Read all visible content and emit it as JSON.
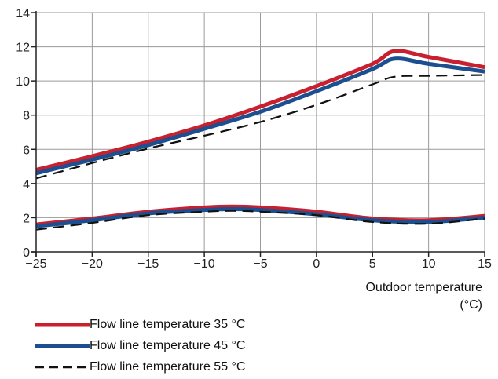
{
  "chart_data": {
    "type": "line",
    "title": "",
    "xlabel": "Outdoor temperature",
    "xlabel_unit": "(°C)",
    "ylabel": "",
    "xlim": [
      -25,
      15
    ],
    "ylim": [
      0,
      14
    ],
    "xticks": [
      "-25",
      "-20",
      "-15",
      "-10",
      "-5",
      "0",
      "5",
      "10",
      "15"
    ],
    "yticks": [
      "0",
      "2",
      "4",
      "6",
      "8",
      "10",
      "12",
      "14"
    ],
    "grid": true,
    "legend_position": "bottom-left",
    "series": [
      {
        "name": "Flow line temperature 35 °C",
        "color": "#c8202f",
        "style": "solid",
        "curves": [
          {
            "x": [
              -25,
              -20,
              -15,
              -10,
              -5,
              0,
              5,
              7,
              10,
              15
            ],
            "y": [
              4.8,
              5.6,
              6.45,
              7.4,
              8.5,
              9.7,
              11.0,
              11.75,
              11.4,
              10.8
            ]
          },
          {
            "x": [
              -25,
              -20,
              -15,
              -10,
              -7.5,
              -5,
              0,
              5,
              10,
              15
            ],
            "y": [
              1.6,
              1.95,
              2.35,
              2.6,
              2.65,
              2.6,
              2.35,
              1.95,
              1.85,
              2.1
            ]
          }
        ]
      },
      {
        "name": "Flow line temperature 45 °C",
        "color": "#1b4f8f",
        "style": "solid",
        "curves": [
          {
            "x": [
              -25,
              -20,
              -15,
              -10,
              -5,
              0,
              5,
              7,
              10,
              15
            ],
            "y": [
              4.6,
              5.4,
              6.25,
              7.2,
              8.2,
              9.4,
              10.7,
              11.3,
              11.0,
              10.55
            ]
          },
          {
            "x": [
              -25,
              -20,
              -15,
              -10,
              -7.5,
              -5,
              0,
              5,
              10,
              15
            ],
            "y": [
              1.5,
              1.85,
              2.25,
              2.45,
              2.5,
              2.45,
              2.2,
              1.85,
              1.75,
              2.0
            ]
          }
        ]
      },
      {
        "name": "Flow line temperature 55 °C",
        "color": "#111111",
        "style": "dashed",
        "curves": [
          {
            "x": [
              -25,
              -20,
              -15,
              -10,
              -5,
              0,
              5,
              7,
              10,
              15
            ],
            "y": [
              4.3,
              5.2,
              6.05,
              6.8,
              7.6,
              8.6,
              9.8,
              10.25,
              10.3,
              10.35
            ]
          },
          {
            "x": [
              -25,
              -20,
              -15,
              -10,
              -7.5,
              -5,
              0,
              5,
              10,
              15
            ],
            "y": [
              1.3,
              1.7,
              2.15,
              2.35,
              2.4,
              2.35,
              2.15,
              1.75,
              1.65,
              1.95
            ]
          }
        ]
      }
    ]
  }
}
